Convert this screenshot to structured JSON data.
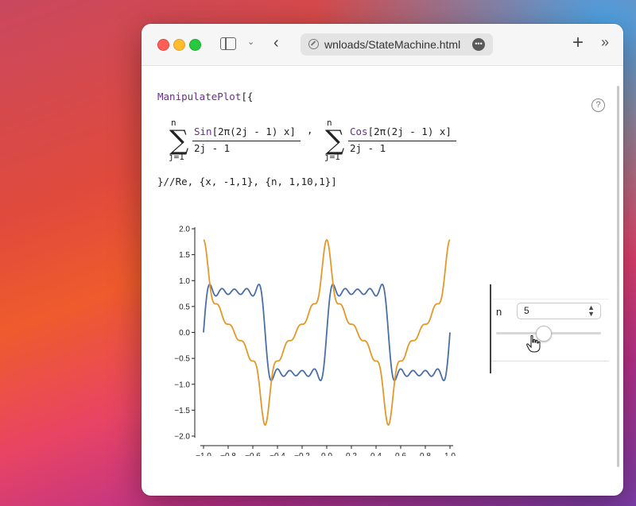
{
  "browser": {
    "url_text": "wnloads/StateMachine.html",
    "back_icon": "chevron-left-icon",
    "new_tab_icon": "plus-icon",
    "more_tabs_icon": "double-chevron-right-icon"
  },
  "code": {
    "line1_fn": "ManipulatePlot",
    "line1_rest": "[{",
    "sum1_upper": "n",
    "sum1_lower": "j=1",
    "sum1_num_fn": "Sin",
    "sum1_num_rest": "[2π(2j - 1) x]",
    "sum1_den": "2j - 1",
    "comma": ",",
    "sum2_upper": "n",
    "sum2_lower": "j=1",
    "sum2_num_fn": "Cos",
    "sum2_num_rest": "[2π(2j - 1) x]",
    "sum2_den": "2j - 1",
    "line3": "}//Re, {x, -1,1}, {n, 1,10,1}]"
  },
  "help_label": "?",
  "control": {
    "label": "n",
    "value": "5",
    "min": 1,
    "max": 10,
    "step": 1,
    "slider_fraction": 0.444
  },
  "chart_data": {
    "type": "line",
    "title": "",
    "xlabel": "",
    "ylabel": "",
    "xlim": [
      -1.0,
      1.0
    ],
    "ylim": [
      -2.0,
      2.0
    ],
    "xticks": [
      "−1.0",
      "−0.8",
      "−0.6",
      "−0.4",
      "−0.2",
      "0.0",
      "0.2",
      "0.4",
      "0.6",
      "0.8",
      "1.0"
    ],
    "yticks": [
      "−2.0",
      "−1.5",
      "−1.0",
      "−0.5",
      "0.0",
      "0.5",
      "1.0",
      "1.5",
      "2.0"
    ],
    "grid": false,
    "series": [
      {
        "color": "#4a6fa5",
        "expr": "sum_{j=1}^{n} sin(2π(2j-1)x)/(2j-1)",
        "n": 5
      },
      {
        "color": "#e3982a",
        "expr": "sum_{j=1}^{n} cos(2π(2j-1)x)/(2j-1)",
        "n": 5
      }
    ]
  }
}
